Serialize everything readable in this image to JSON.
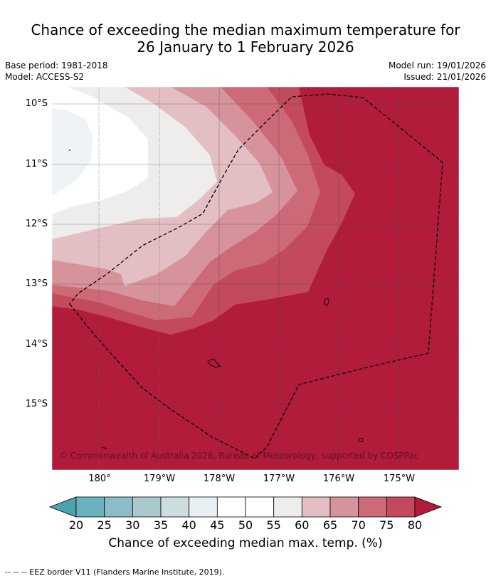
{
  "title": {
    "line1": "Chance of exceeding the median maximum temperature for",
    "line2": "26 January to 1 February 2026"
  },
  "header": {
    "base_period": "Base period: 1981-2018",
    "model": "Model: ACCESS-S2",
    "model_run": "Model run: 19/01/2026",
    "issued": "Issued: 21/01/2026"
  },
  "map": {
    "latitudes": [
      "10°S",
      "11°S",
      "12°S",
      "13°S",
      "14°S",
      "15°S"
    ],
    "longitudes": [
      "180°",
      "179°W",
      "178°W",
      "177°W",
      "176°W",
      "175°W"
    ],
    "copyright": "© Commonwealth of Australia 2026, Bureau of Meteorology, supported by COSPPac"
  },
  "colorbar": {
    "ticks": [
      "20",
      "25",
      "30",
      "35",
      "40",
      "45",
      "50",
      "55",
      "60",
      "65",
      "70",
      "75",
      "80"
    ],
    "colors": {
      "below_20": "#4aa2ae",
      "c20_25": "#6ab2be",
      "c25_30": "#8bbcc7",
      "c30_35": "#a9c9cf",
      "c35_40": "#cddcde",
      "c40_45": "#e9f0f3",
      "c45_50": "#ffffff",
      "c50_55": "#ffffff",
      "c55_60": "#eeedec",
      "c60_65": "#e3bfc3",
      "c65_70": "#d7939b",
      "c70_75": "#cd6a78",
      "c75_80": "#c24a5c",
      "above_80": "#b01c3a"
    },
    "label": "Chance of exceeding median max. temp. (%)"
  },
  "footnote": "--  --  -- EEZ border V11 (Flanders Marine Institute, 2019)."
}
